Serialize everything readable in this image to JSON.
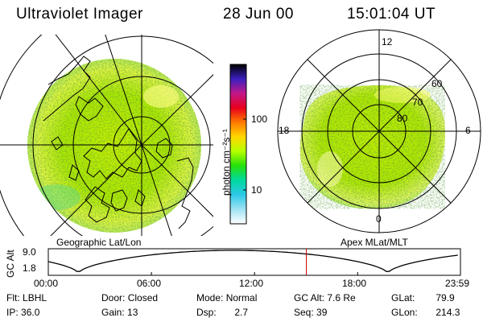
{
  "header": {
    "instrument": "Ultraviolet Imager",
    "date": "28 Jun 00",
    "time": "15:01:04 UT"
  },
  "geo_panel": {
    "label": "Geographic Lat/Lon"
  },
  "apex_panel": {
    "label": "Apex MLat/MLT",
    "mlt_labels": [
      "12",
      "18",
      "6",
      "0"
    ],
    "lat_labels": [
      "60",
      "70",
      "80"
    ]
  },
  "colorbar": {
    "unit_label": "photon cm⁻²s⁻¹",
    "tick_labels": [
      "100",
      "10"
    ],
    "colors": [
      "#000000",
      "#3b1fbf",
      "#c2178a",
      "#e8001a",
      "#ff7a00",
      "#ffd800",
      "#b5ff00",
      "#25e00a",
      "#00d9a0",
      "#2ec8e8",
      "#9fe2f3",
      "#ffffff"
    ]
  },
  "altitude_plot": {
    "ylabel": "GC Alt",
    "y_ticks": [
      "9.0",
      "1.8"
    ],
    "x_ticks": [
      "00:00",
      "06:00",
      "12:00",
      "18:00",
      "23:59"
    ],
    "marker_time": "15:01",
    "marker_color": "#cc0000"
  },
  "info": {
    "filter": {
      "label": "Flt:",
      "value": "LBHL"
    },
    "ip": {
      "label": "IP:",
      "value": "36.0"
    },
    "door": {
      "label": "Door:",
      "value": "Closed"
    },
    "gain": {
      "label": "Gain:",
      "value": "13"
    },
    "mode": {
      "label": "Mode:",
      "value": "Normal"
    },
    "dsp": {
      "label": "Dsp:",
      "value": "2.7"
    },
    "gc_alt": {
      "label": "GC Alt:",
      "value": "7.6 Re"
    },
    "seq": {
      "label": "Seq:",
      "value": "39"
    },
    "glat": {
      "label": "GLat:",
      "value": "79.9"
    },
    "glon": {
      "label": "GLon:",
      "value": "214.3"
    }
  }
}
